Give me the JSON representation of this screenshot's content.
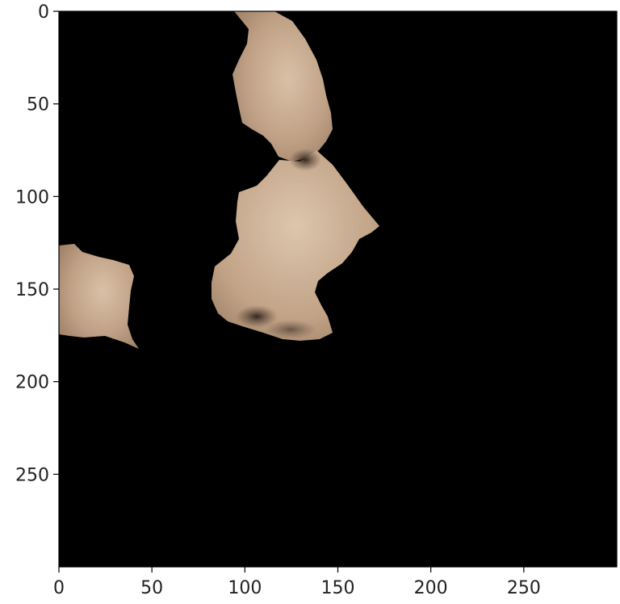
{
  "figure": {
    "type": "image-plot",
    "background_color": "#000000",
    "region_color": "#b89a80",
    "x_axis": {
      "range": [
        0,
        300
      ],
      "ticks": [
        {
          "value": 0,
          "label": "0"
        },
        {
          "value": 50,
          "label": "50"
        },
        {
          "value": 100,
          "label": "100"
        },
        {
          "value": 150,
          "label": "150"
        },
        {
          "value": 200,
          "label": "200"
        },
        {
          "value": 250,
          "label": "250"
        }
      ]
    },
    "y_axis": {
      "range": [
        0,
        300
      ],
      "inverted": true,
      "ticks": [
        {
          "value": 0,
          "label": "0"
        },
        {
          "value": 50,
          "label": "50"
        },
        {
          "value": 100,
          "label": "100"
        },
        {
          "value": 150,
          "label": "150"
        },
        {
          "value": 200,
          "label": "200"
        },
        {
          "value": 250,
          "label": "250"
        }
      ]
    }
  }
}
